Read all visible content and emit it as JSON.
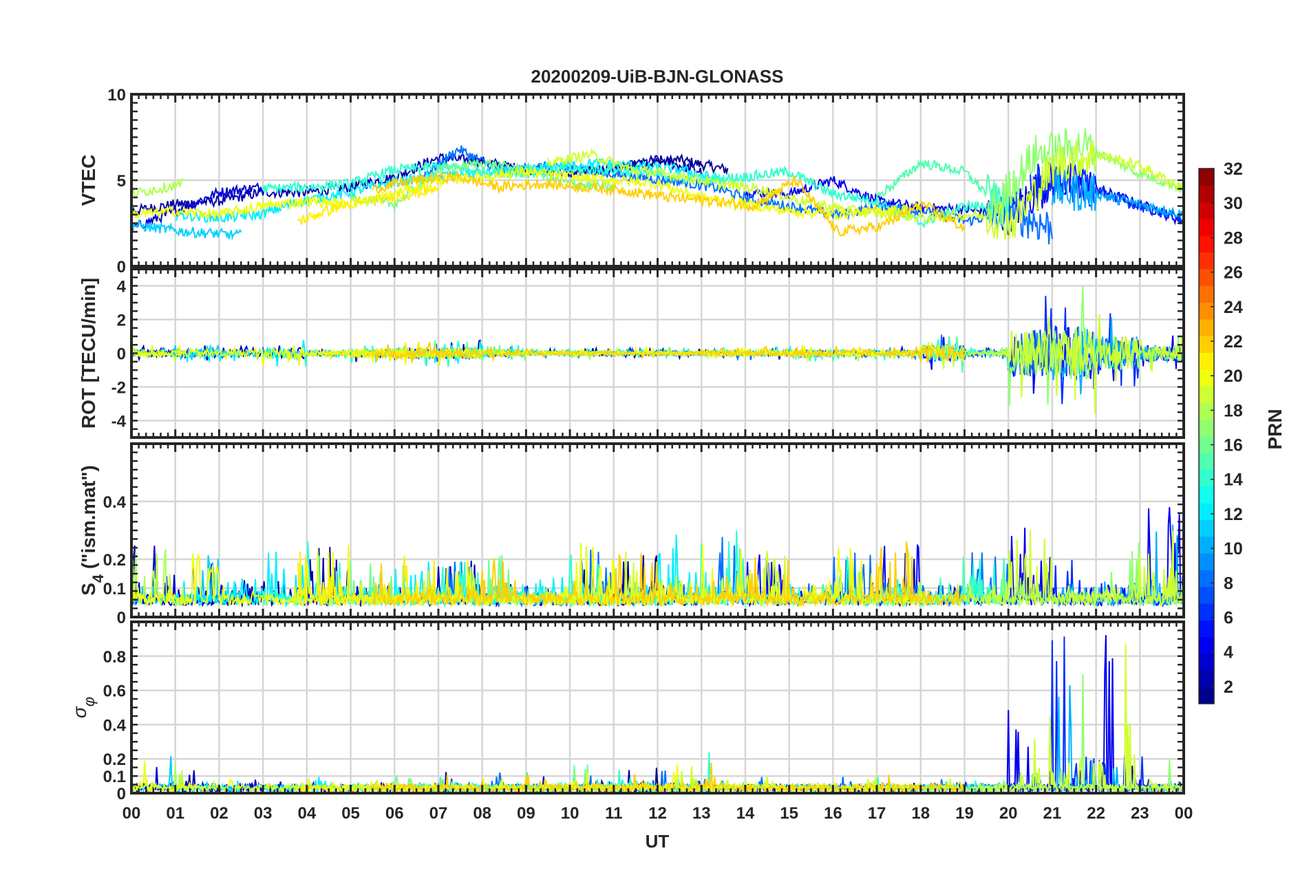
{
  "chart_data": {
    "type": "line",
    "title": "20200209-UiB-BJN-GLONASS",
    "xlabel": "UT",
    "xlim": [
      0,
      24
    ],
    "x_tick_labels": [
      "00",
      "01",
      "02",
      "03",
      "04",
      "05",
      "06",
      "07",
      "08",
      "09",
      "10",
      "11",
      "12",
      "13",
      "14",
      "15",
      "16",
      "17",
      "18",
      "19",
      "20",
      "21",
      "22",
      "23",
      "00"
    ],
    "panels": [
      {
        "ylabel": "VTEC",
        "ylim": [
          0,
          10
        ],
        "y_ticks": [
          0,
          5,
          10
        ],
        "y_tick_labels": [
          "0",
          "5",
          "10"
        ]
      },
      {
        "ylabel": "ROT [TECU/min]",
        "ylim": [
          -5,
          5
        ],
        "y_ticks": [
          -4,
          -2,
          0,
          2,
          4
        ],
        "y_tick_labels": [
          "-4",
          "-2",
          "0",
          "2",
          "4"
        ]
      },
      {
        "ylabel": "S",
        "ylabel_sub": "4",
        "ylabel_suffix": " (\"ism.mat\")",
        "ylim": [
          0,
          0.6
        ],
        "y_ticks": [
          0,
          0.1,
          0.2,
          0.4
        ],
        "y_tick_labels": [
          "0",
          "0.1",
          "0.2",
          "0.4"
        ]
      },
      {
        "ylabel": "σ",
        "ylabel_sub": "φ",
        "ylim": [
          0,
          1
        ],
        "y_ticks": [
          0,
          0.1,
          0.2,
          0.4,
          0.6,
          0.8
        ],
        "y_tick_labels": [
          "0",
          "0.1",
          "0.2",
          "0.4",
          "0.6",
          "0.8"
        ]
      }
    ],
    "colorbar": {
      "label": "PRN",
      "range": [
        1,
        32
      ],
      "ticks": [
        "2",
        "4",
        "6",
        "8",
        "10",
        "12",
        "14",
        "16",
        "18",
        "20",
        "22",
        "24",
        "26",
        "28",
        "30",
        "32"
      ],
      "colormap": "jet",
      "levels": 32
    },
    "activity_hourly": {
      "rot_amplitude": [
        0.5,
        0.6,
        0.5,
        0.8,
        0.4,
        0.6,
        0.8,
        0.8,
        0.5,
        0.3,
        0.3,
        0.3,
        0.3,
        0.4,
        0.4,
        0.5,
        0.5,
        0.4,
        1.2,
        0.4,
        3.5,
        4.0,
        2.5,
        1.2
      ],
      "s4_peak": [
        0.25,
        0.2,
        0.28,
        0.22,
        0.25,
        0.2,
        0.2,
        0.18,
        0.2,
        0.12,
        0.25,
        0.2,
        0.28,
        0.28,
        0.2,
        0.2,
        0.22,
        0.25,
        0.2,
        0.2,
        0.3,
        0.2,
        0.3,
        0.4
      ],
      "sigma_peak": [
        0.18,
        0.15,
        0.06,
        0.08,
        0.06,
        0.1,
        0.08,
        0.08,
        0.08,
        0.08,
        0.18,
        0.15,
        0.15,
        0.2,
        0.06,
        0.05,
        0.05,
        0.06,
        0.08,
        0.06,
        0.5,
        0.9,
        0.95,
        0.25
      ]
    },
    "series": [
      {
        "prn": 1,
        "start": 10.2,
        "end": 13.6,
        "vtec": [
          5.5,
          5.8,
          6.2,
          5.6
        ]
      },
      {
        "prn": 2,
        "start": 0.0,
        "end": 13.0,
        "vtec": [
          3.2,
          3.6,
          3.8,
          4.3,
          4.3,
          4.6,
          5.2,
          6.3,
          6.1,
          5.6,
          5.4,
          5.6,
          6.2,
          5.5
        ]
      },
      {
        "prn": 3,
        "start": 0.0,
        "end": 3.0,
        "vtec": [
          2.2,
          3.2,
          4.3,
          4.6
        ]
      },
      {
        "prn": 4,
        "start": 14.0,
        "end": 24.0,
        "vtec": [
          4.3,
          4.2,
          5.0,
          3.8,
          3.4,
          3.3,
          3.0,
          5.0,
          4.5,
          3.6,
          2.6
        ]
      },
      {
        "prn": 6,
        "start": 20.5,
        "end": 24.0,
        "vtec": [
          5.0,
          4.8,
          3.6,
          2.7
        ]
      },
      {
        "prn": 8,
        "start": 6.5,
        "end": 21.0,
        "vtec": [
          5.0,
          6.8,
          5.5,
          5.8,
          5.6,
          5.2,
          5.0,
          4.6,
          3.8,
          3.4,
          3.0,
          3.5,
          3.2,
          2.6,
          3.2,
          2.2
        ]
      },
      {
        "prn": 10,
        "start": 21.0,
        "end": 24.0,
        "vtec": [
          4.5,
          4.2,
          3.6,
          3.0
        ]
      },
      {
        "prn": 11,
        "start": 0.0,
        "end": 2.5,
        "vtec": [
          2.4,
          2.0,
          1.8
        ]
      },
      {
        "prn": 12,
        "start": 1.0,
        "end": 13.5,
        "vtec": [
          3.0,
          2.8,
          3.0,
          3.8,
          4.2,
          4.8,
          5.2,
          5.4,
          5.5,
          5.8,
          6.0,
          5.8,
          5.6,
          5.0
        ]
      },
      {
        "prn": 14,
        "start": 3.0,
        "end": 20.0,
        "vtec": [
          4.5,
          4.6,
          4.8,
          5.6,
          5.8,
          5.5,
          5.4,
          5.6,
          5.6,
          5.3,
          5.0,
          5.2,
          5.5,
          4.2,
          3.8,
          2.5,
          3.5,
          3.5
        ]
      },
      {
        "prn": 15,
        "start": 17.0,
        "end": 20.0,
        "vtec": [
          4.0,
          6.0,
          5.5,
          3.0
        ]
      },
      {
        "prn": 16,
        "start": 5.0,
        "end": 11.0,
        "vtec": [
          4.0,
          3.6,
          5.6,
          6.0,
          5.6,
          4.8,
          4.6
        ]
      },
      {
        "prn": 17,
        "start": 19.5,
        "end": 24.0,
        "vtec": [
          2.8,
          6.5,
          7.0,
          5.5,
          4.5
        ]
      },
      {
        "prn": 18,
        "start": 0.0,
        "end": 1.2,
        "vtec": [
          4.2,
          4.8
        ]
      },
      {
        "prn": 19,
        "start": 9.5,
        "end": 24.0,
        "vtec": [
          6.0,
          6.5,
          5.6,
          5.3,
          4.8,
          4.5,
          3.8,
          3.3,
          3.0,
          2.8,
          3.0,
          2.6,
          6.0,
          6.5,
          5.8,
          4.5
        ]
      },
      {
        "prn": 20,
        "start": 0.0,
        "end": 18.0,
        "vtec": [
          3.0,
          3.2,
          3.0,
          3.5,
          3.8,
          3.6,
          4.2,
          5.0,
          5.2,
          5.5,
          5.2,
          5.0,
          4.8,
          4.0,
          3.6,
          3.2,
          3.0,
          3.2,
          3.4
        ]
      },
      {
        "prn": 21,
        "start": 3.8,
        "end": 7.0,
        "vtec": [
          2.6,
          3.6,
          4.0,
          4.5
        ]
      },
      {
        "prn": 22,
        "start": 5.5,
        "end": 19.0,
        "vtec": [
          4.5,
          5.0,
          5.2,
          4.6,
          4.8,
          4.6,
          4.4,
          4.0,
          3.8,
          3.5,
          5.0,
          2.0,
          2.3,
          3.6,
          2.2
        ]
      }
    ]
  }
}
